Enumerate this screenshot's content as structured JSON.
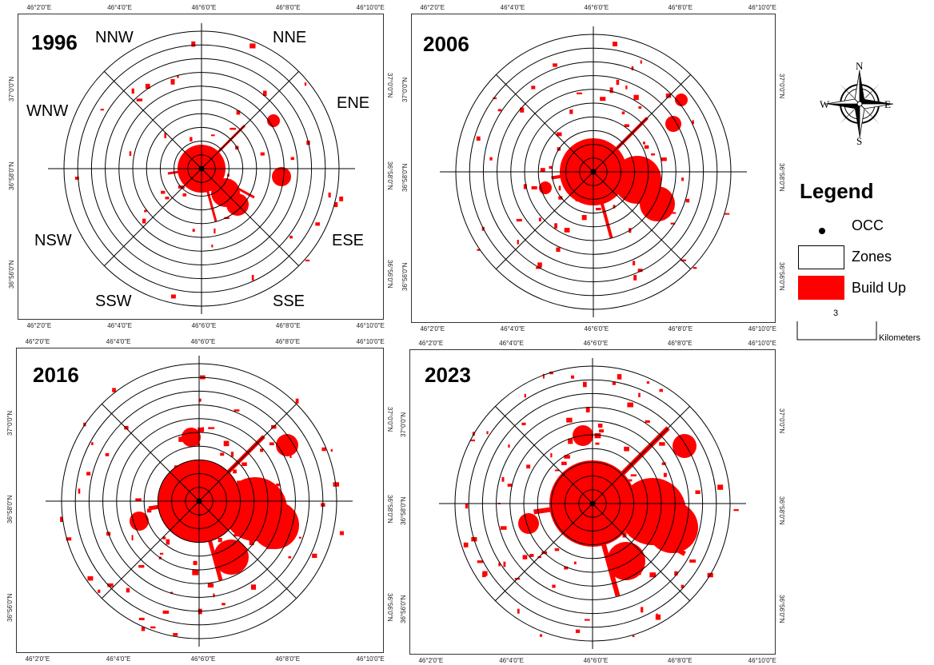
{
  "panels": [
    {
      "year": "1996",
      "top_ticks": [
        "46°2'0\"E",
        "46°4'0\"E",
        "46°6'0\"E",
        "46°8'0\"E",
        "46°10'0\"E"
      ],
      "bottom_ticks": [
        "46°2'0\"E",
        "46°4'0\"E",
        "46°6'0\"E",
        "46°8'0\"E",
        "46°10'0\"E"
      ],
      "left_ticks": [
        "37°0'0\"N",
        "36°58'0\"N",
        "36°56'0\"N"
      ],
      "right_ticks": [
        "37°0'0\"N",
        "36°58'0\"N",
        "36°56'0\"N"
      ]
    },
    {
      "year": "2006",
      "top_ticks": [
        "46°2'0\"E",
        "46°4'0\"E",
        "46°6'0\"E",
        "46°8'0\"E",
        "46°10'0\"E"
      ],
      "bottom_ticks": [
        "46°2'0\"E",
        "46°4'0\"E",
        "46°6'0\"E",
        "46°8'0\"E",
        "46°10'0\"E"
      ],
      "left_ticks": [
        "37°0'0\"N",
        "36°58'0\"N",
        "36°56'0\"N"
      ],
      "right_ticks": [
        "37°0'0\"N",
        "36°58'0\"N",
        "36°56'0\"N"
      ]
    },
    {
      "year": "2016",
      "top_ticks": [
        "46°2'0\"E",
        "46°4'0\"E",
        "46°6'0\"E",
        "46°8'0\"E",
        "46°10'0\"E"
      ],
      "bottom_ticks": [
        "46°2'0\"E",
        "46°4'0\"E",
        "46°6'0\"E",
        "46°8'0\"E",
        "46°10'0\"E"
      ],
      "left_ticks": [
        "37°0'0\"N",
        "36°58'0\"N",
        "36°56'0\"N"
      ],
      "right_ticks": [
        "37°0'0\"N",
        "36°58'0\"N",
        "36°56'0\"N"
      ]
    },
    {
      "year": "2023",
      "top_ticks": [
        "46°2'0\"E",
        "46°4'0\"E",
        "46°6'0\"E",
        "46°8'0\"E",
        "46°10'0\"E"
      ],
      "bottom_ticks": [
        "46°2'0\"E",
        "46°4'0\"E",
        "46°6'0\"E",
        "46°8'0\"E",
        "46°10'0\"E"
      ],
      "left_ticks": [
        "37°0'0\"N",
        "36°58'0\"N",
        "36°56'0\"N"
      ],
      "right_ticks": [
        "37°0'0\"N",
        "36°58'0\"N",
        "36°56'0\"N"
      ]
    }
  ],
  "zone_labels": {
    "nnw": "NNW",
    "nne": "NNE",
    "wnw": "WNW",
    "ene": "ENE",
    "nsw": "NSW",
    "ese": "ESE",
    "ssw": "SSW",
    "sse": "SSE"
  },
  "compass": {
    "n": "N",
    "s": "S",
    "e": "E",
    "w": "W"
  },
  "legend": {
    "title": "Legend",
    "items": [
      {
        "label": "OCC",
        "symbol": "dot"
      },
      {
        "label": "Zones",
        "symbol": "outline-box"
      },
      {
        "label": "Build Up",
        "symbol": "filled-box",
        "color": "#ff0000"
      }
    ]
  },
  "scale_bar": {
    "value": "3",
    "unit": "Kilometers"
  },
  "colors": {
    "build_up": "#ff0000",
    "zones_line": "#000000"
  }
}
